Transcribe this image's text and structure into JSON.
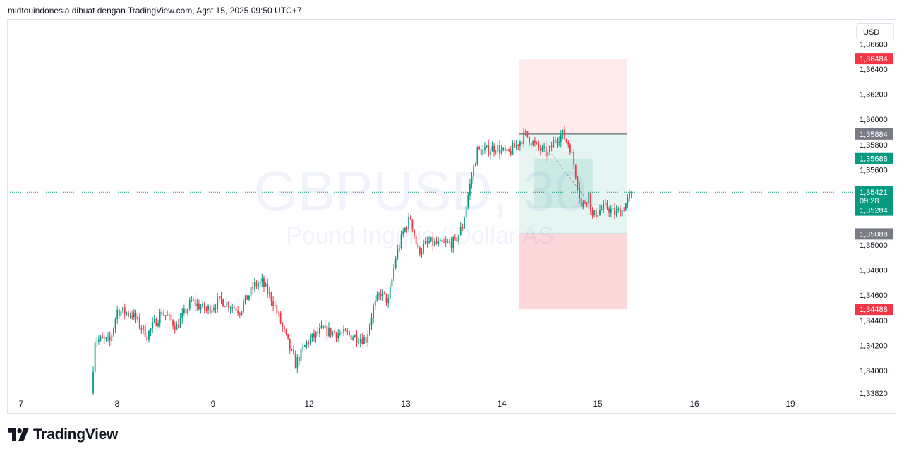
{
  "header": {
    "attribution": "midtouindonesia dibuat dengan TradingView.com, Agst 15, 2025 09:50 UTC+7"
  },
  "currency_button": "USD",
  "watermark": {
    "symbol": "GBPUSD, 30",
    "description": "Pound Inggris / Dollar AS"
  },
  "brand": {
    "name": "TradingView",
    "icon": "tradingview-logo-icon"
  },
  "colors": {
    "up": "#089981",
    "down": "#f23645",
    "stop_zone": "#f23645",
    "target_zone": "#089981",
    "label_gray": "#787b86",
    "label_red": "#f23645",
    "label_green": "#089981"
  },
  "chart_data": {
    "type": "candlestick",
    "symbol": "GBPUSD, 30",
    "x_tick_labels": [
      "7",
      "8",
      "9",
      "12",
      "13",
      "14",
      "15",
      "16",
      "19"
    ],
    "y_tick_labels": [
      "1,36600",
      "1,36400",
      "1,36200",
      "1,36000",
      "1,35800",
      "1,35600",
      "1,35000",
      "1,34800",
      "1,34600",
      "1,34400",
      "1,34200",
      "1,34000",
      "1,33820"
    ],
    "y_tick_values": [
      1.366,
      1.364,
      1.362,
      1.36,
      1.358,
      1.356,
      1.35,
      1.348,
      1.346,
      1.344,
      1.342,
      1.34,
      1.3382
    ],
    "ylim": [
      1.3382,
      1.3676
    ],
    "price_labels": [
      {
        "text": "1,36484",
        "value": 1.36484,
        "role": "stop"
      },
      {
        "text": "1,35884",
        "value": 1.35884,
        "role": "level"
      },
      {
        "text": "1,35688",
        "value": 1.35688,
        "role": "entry"
      },
      {
        "text": "1,35421",
        "value": 1.35421,
        "role": "last",
        "countdown": "09:28"
      },
      {
        "text": "1,35284",
        "value": 1.35284,
        "role": "current"
      },
      {
        "text": "1,35088",
        "value": 1.35088,
        "role": "level"
      },
      {
        "text": "1,34488",
        "value": 1.34488,
        "role": "stop"
      }
    ],
    "last_price": 1.35421,
    "position_tool": {
      "upper_stop": [
        1.35884,
        1.36484
      ],
      "upper_target": [
        1.35688,
        1.35884
      ],
      "lower_target": [
        1.35088,
        1.35688
      ],
      "lower_stop": [
        1.34488,
        1.35088
      ],
      "inner_highlight": [
        1.353,
        1.35688
      ]
    },
    "anchors": [
      {
        "x": 0,
        "price": 1.3382
      },
      {
        "x": 2,
        "price": 1.3425
      },
      {
        "x": 10,
        "price": 1.3423
      },
      {
        "x": 14,
        "price": 1.3448
      },
      {
        "x": 22,
        "price": 1.3445
      },
      {
        "x": 30,
        "price": 1.3428
      },
      {
        "x": 38,
        "price": 1.3447
      },
      {
        "x": 46,
        "price": 1.3435
      },
      {
        "x": 54,
        "price": 1.3455
      },
      {
        "x": 62,
        "price": 1.3448
      },
      {
        "x": 70,
        "price": 1.3456
      },
      {
        "x": 80,
        "price": 1.3448
      },
      {
        "x": 88,
        "price": 1.3468
      },
      {
        "x": 92,
        "price": 1.347
      },
      {
        "x": 98,
        "price": 1.3455
      },
      {
        "x": 104,
        "price": 1.343
      },
      {
        "x": 110,
        "price": 1.3405
      },
      {
        "x": 116,
        "price": 1.3422
      },
      {
        "x": 124,
        "price": 1.3432
      },
      {
        "x": 132,
        "price": 1.343
      },
      {
        "x": 140,
        "price": 1.3428
      },
      {
        "x": 148,
        "price": 1.3425
      },
      {
        "x": 152,
        "price": 1.345
      },
      {
        "x": 156,
        "price": 1.3462
      },
      {
        "x": 160,
        "price": 1.3455
      },
      {
        "x": 164,
        "price": 1.349
      },
      {
        "x": 168,
        "price": 1.351
      },
      {
        "x": 172,
        "price": 1.3522
      },
      {
        "x": 176,
        "price": 1.3495
      },
      {
        "x": 182,
        "price": 1.3502
      },
      {
        "x": 188,
        "price": 1.35
      },
      {
        "x": 196,
        "price": 1.3502
      },
      {
        "x": 200,
        "price": 1.3515
      },
      {
        "x": 204,
        "price": 1.3548
      },
      {
        "x": 208,
        "price": 1.3575
      },
      {
        "x": 212,
        "price": 1.3575
      },
      {
        "x": 218,
        "price": 1.3578
      },
      {
        "x": 224,
        "price": 1.3572
      },
      {
        "x": 228,
        "price": 1.3578
      },
      {
        "x": 234,
        "price": 1.3588
      },
      {
        "x": 240,
        "price": 1.3578
      },
      {
        "x": 246,
        "price": 1.3572
      },
      {
        "x": 250,
        "price": 1.3585
      },
      {
        "x": 254,
        "price": 1.3588
      },
      {
        "x": 258,
        "price": 1.3578
      },
      {
        "x": 262,
        "price": 1.355
      },
      {
        "x": 264,
        "price": 1.353
      },
      {
        "x": 268,
        "price": 1.354
      },
      {
        "x": 270,
        "price": 1.3522
      },
      {
        "x": 274,
        "price": 1.3528
      },
      {
        "x": 278,
        "price": 1.353
      },
      {
        "x": 282,
        "price": 1.3525
      },
      {
        "x": 286,
        "price": 1.3528
      },
      {
        "x": 290,
        "price": 1.3538
      }
    ],
    "n_candles": 291,
    "x_day_index": {
      "8": 28,
      "9": 68,
      "12": 108,
      "13": 148,
      "14": 188,
      "15": 228,
      "16": 268,
      "19": 308
    },
    "first_day_index": -10
  }
}
